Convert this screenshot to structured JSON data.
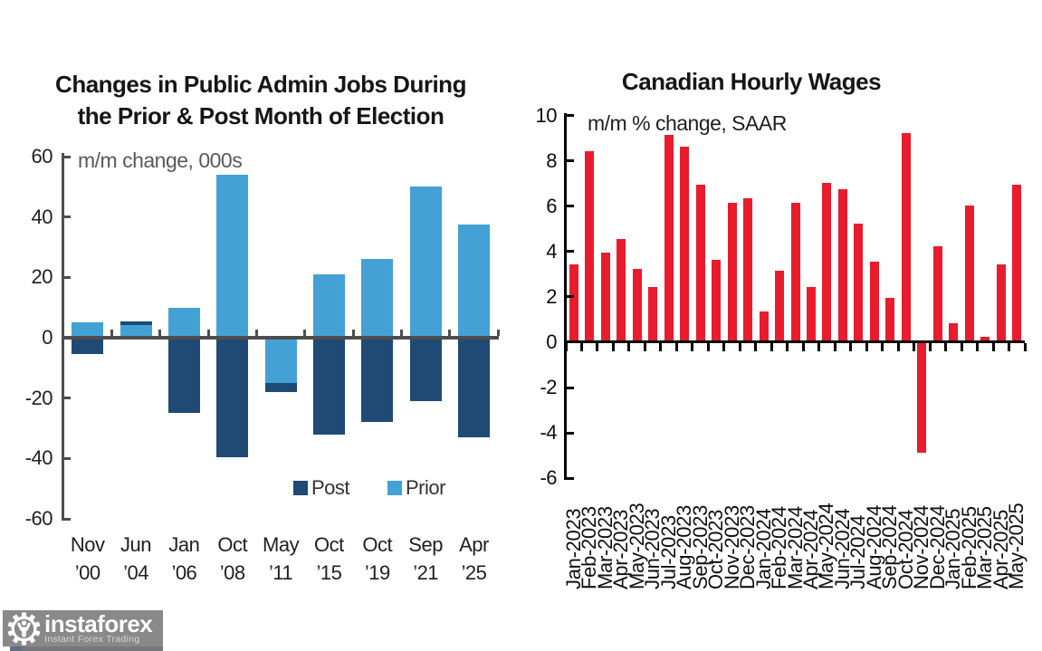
{
  "chart_data": [
    {
      "type": "bar",
      "title": "Changes in Public Admin Jobs During the Prior & Post Month of Election",
      "title_lines": [
        "Changes in Public Admin Jobs During",
        "the Prior & Post Month of Election"
      ],
      "annotation": "m/m change, 000s",
      "ylim": [
        -60,
        60
      ],
      "y_ticks": [
        60,
        40,
        20,
        0,
        -20,
        -40,
        -60
      ],
      "grid": false,
      "legend_position": "inside bottom-right",
      "legend": [
        "Post",
        "Prior"
      ],
      "categories": [
        "Nov ’00",
        "Jun ’04",
        "Jan ’06",
        "Oct ’08",
        "May ’11",
        "Oct ’15",
        "Oct ’19",
        "Sep ’21",
        "Apr ’25"
      ],
      "category_lines": [
        [
          "Nov",
          "’00"
        ],
        [
          "Jun",
          "’04"
        ],
        [
          "Jan",
          "’06"
        ],
        [
          "Oct",
          "’08"
        ],
        [
          "May",
          "’11"
        ],
        [
          "Oct",
          "’15"
        ],
        [
          "Oct",
          "’19"
        ],
        [
          "Sep",
          "’21"
        ],
        [
          "Apr",
          "’25"
        ]
      ],
      "series": [
        {
          "name": "Post",
          "color": "#1e4a74",
          "values": [
            -5.5,
            5.5,
            -25,
            -39.5,
            -18,
            -32,
            -28,
            -21,
            -33
          ]
        },
        {
          "name": "Prior",
          "color": "#43a1d5",
          "values": [
            5,
            4.3,
            10,
            54,
            -15,
            21,
            26,
            50,
            37.5
          ]
        }
      ],
      "axis_color": "#4d4d4d"
    },
    {
      "type": "bar",
      "title": "Canadian Hourly Wages",
      "annotation": "m/m % change, SAAR",
      "ylim": [
        -6,
        10
      ],
      "y_ticks": [
        10,
        8,
        6,
        4,
        2,
        0,
        -2,
        -4,
        -6
      ],
      "grid": false,
      "bar_color": "#e81c2d",
      "axis_color": "#000000",
      "categories": [
        "Jan-2023",
        "Feb-2023",
        "Mar-2023",
        "Apr-2023",
        "May-2023",
        "Jun-2023",
        "Jul-2023",
        "Aug-2023",
        "Sep-2023",
        "Oct-2023",
        "Nov-2023",
        "Dec-2023",
        "Jan-2024",
        "Feb-2024",
        "Mar-2024",
        "Apr-2024",
        "May-2024",
        "Jun-2024",
        "Jul-2024",
        "Aug-2024",
        "Sep-2024",
        "Oct-2024",
        "Nov-2024",
        "Dec-2024",
        "Jan-2025",
        "Feb-2025",
        "Mar-2025",
        "Apr-2025",
        "May-2025"
      ],
      "values": [
        3.4,
        8.4,
        3.9,
        4.5,
        3.2,
        2.4,
        9.1,
        8.6,
        6.9,
        3.6,
        6.1,
        6.3,
        1.3,
        3.1,
        6.1,
        2.4,
        7.0,
        6.7,
        5.2,
        3.5,
        1.9,
        9.2,
        -4.9,
        4.2,
        0.8,
        6.0,
        0.2,
        3.4,
        6.9
      ]
    }
  ],
  "logo": {
    "brand": "instaforex",
    "tagline": "Instant Forex Trading",
    "background": "#898989"
  }
}
